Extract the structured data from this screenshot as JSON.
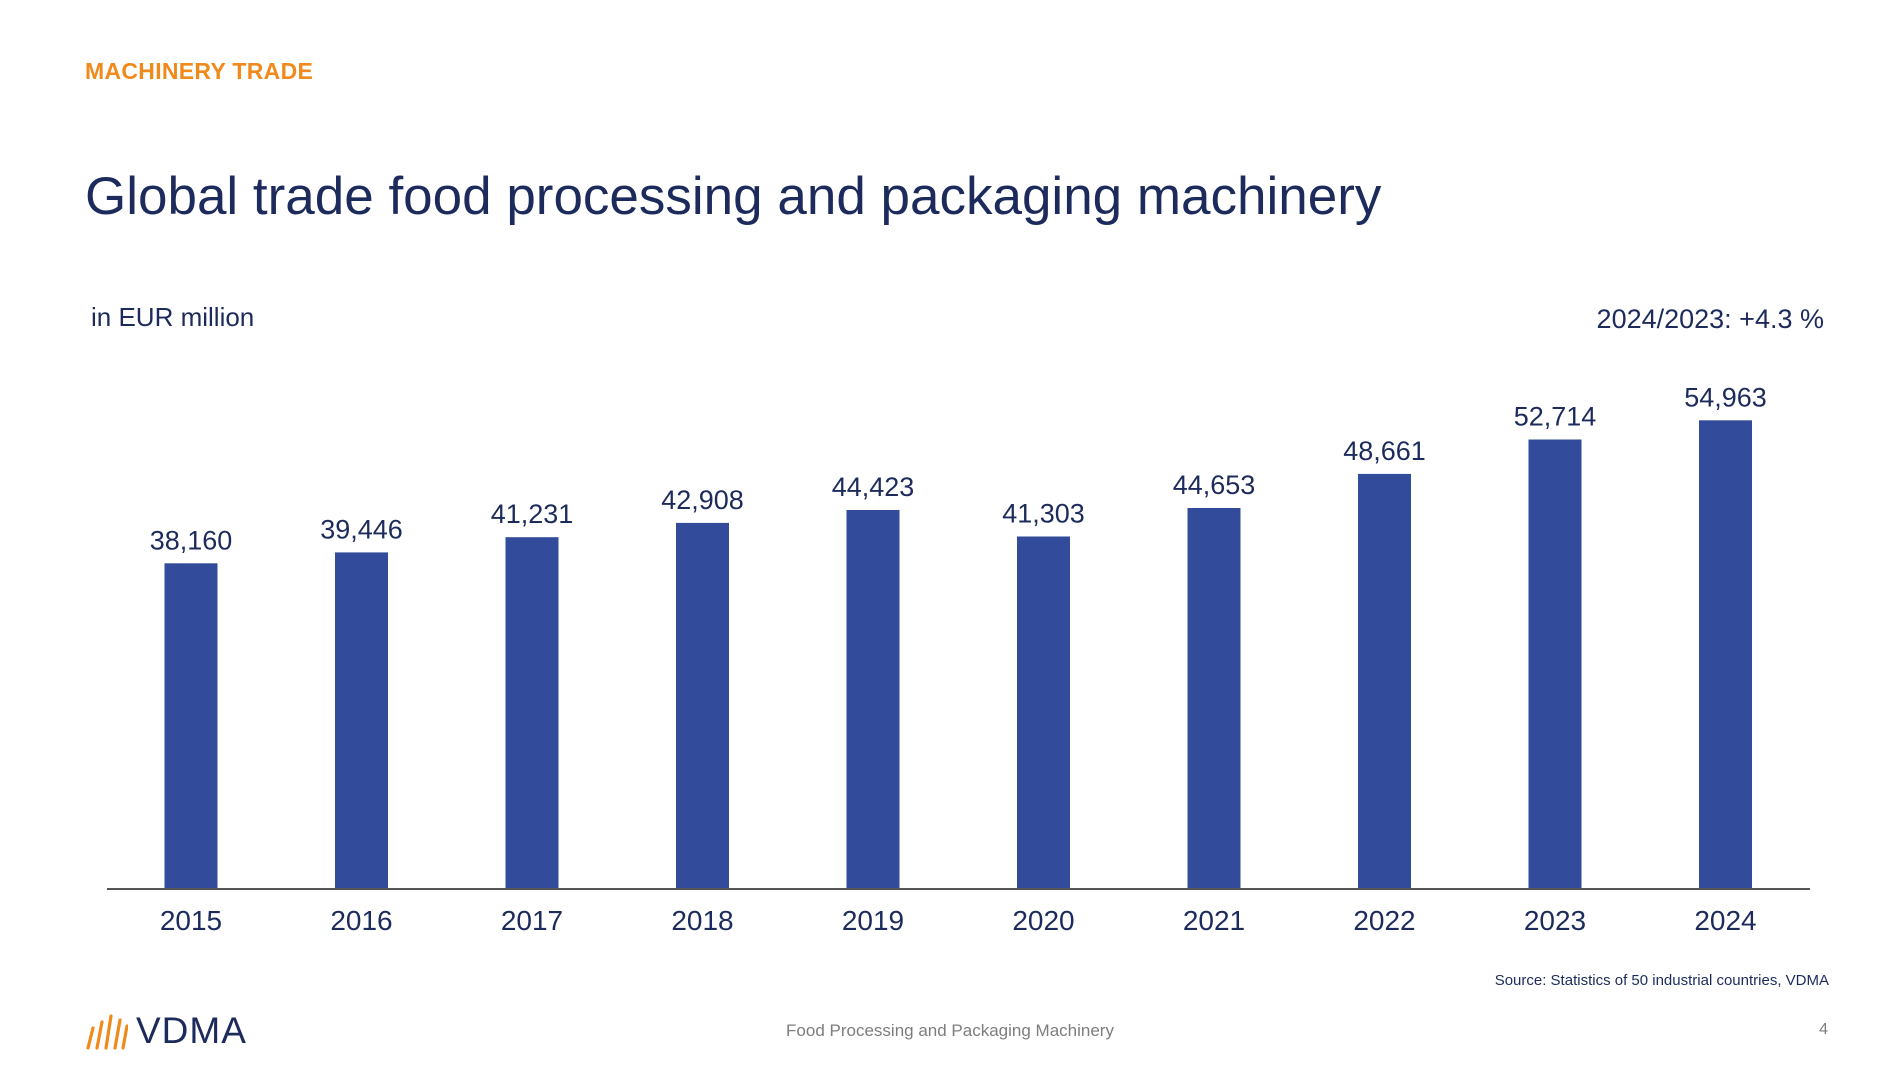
{
  "header": {
    "kicker": "MACHINERY TRADE",
    "title": "Global trade food processing and packaging machinery"
  },
  "chart_data": {
    "type": "bar",
    "title": "Global trade food processing and packaging machinery",
    "ylabel": "in EUR million",
    "xlabel": "",
    "categories": [
      "2015",
      "2016",
      "2017",
      "2018",
      "2019",
      "2020",
      "2021",
      "2022",
      "2023",
      "2024"
    ],
    "values": [
      38160,
      39446,
      41231,
      42908,
      44423,
      41303,
      44653,
      48661,
      52714,
      54963
    ],
    "value_labels": [
      "38,160",
      "39,446",
      "41,231",
      "42,908",
      "44,423",
      "41,303",
      "44,653",
      "48,661",
      "52,714",
      "54,963"
    ],
    "ylim": [
      0,
      60000
    ],
    "grid": false,
    "bar_color": "#324c9b",
    "annotation": "2024/2023: +4.3 %"
  },
  "footer": {
    "source": "Source: Statistics of 50 industrial countries, VDMA",
    "center": "Food Processing and Packaging Machinery",
    "page": "4",
    "logo_text": "VDMA",
    "logo_color": "#f08a1c"
  }
}
